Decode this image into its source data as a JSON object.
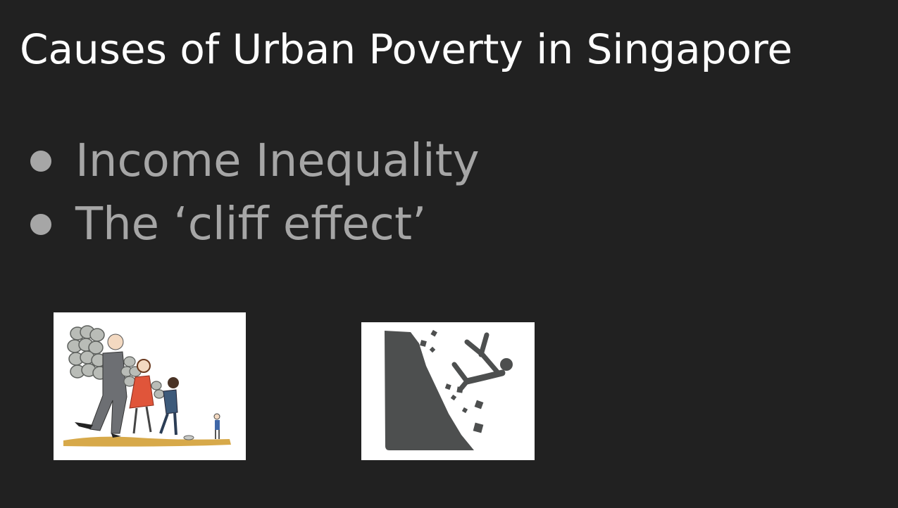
{
  "slide": {
    "title": "Causes of Urban Poverty in Singapore",
    "bullets": [
      {
        "label": "Income Inequality"
      },
      {
        "label": "The ‘cliff effect’"
      }
    ]
  },
  "images": [
    {
      "icon": "income-inequality-illustration",
      "description_shown": false
    },
    {
      "icon": "falling-off-cliff-icon",
      "description_shown": false
    }
  ],
  "colors": {
    "background": "#212121",
    "title": "#ffffff",
    "bullet_text": "#a6a6a6",
    "cliff_icon": "#4d4f4f"
  }
}
